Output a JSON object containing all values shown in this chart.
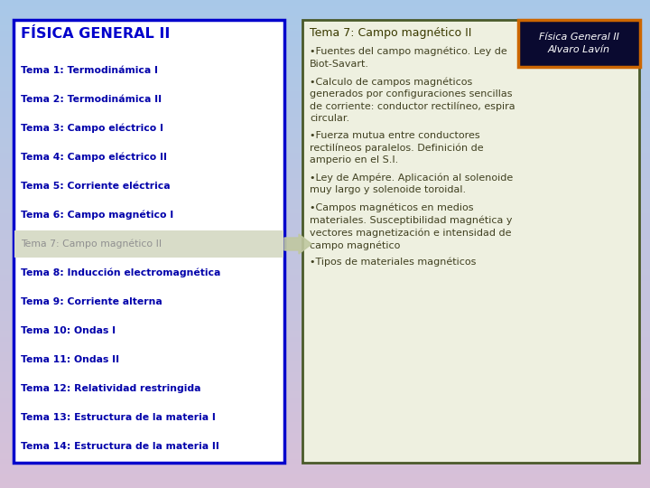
{
  "bg_gradient_top": "#a8c8e8",
  "bg_gradient_bottom": "#d8c0d8",
  "left_box_bg": "#ffffff",
  "left_box_border": "#0000cc",
  "right_box_bg": "#eef0e0",
  "right_box_border": "#4a5a2a",
  "title": "FÍSICA GENERAL II",
  "title_color": "#0000cc",
  "left_items": [
    "Tema 1: Termodinámica I",
    "Tema 2: Termodinámica II",
    "Tema 3: Campo eléctrico I",
    "Tema 4: Campo eléctrico II",
    "Tema 5: Corriente eléctrica",
    "Tema 6: Campo magnético I",
    "Tema 7: Campo magnético II",
    "Tema 8: Inducción electromagnética",
    "Tema 9: Corriente alterna",
    "Tema 10: Ondas I",
    "Tema 11: Ondas II",
    "Tema 12: Relatividad restringida",
    "Tema 13: Estructura de la materia I",
    "Tema 14: Estructura de la materia II"
  ],
  "left_items_color": "#0000aa",
  "highlighted_item_index": 6,
  "highlight_bg": "#d8dcc8",
  "highlight_text_color": "#909090",
  "right_title": "Tema 7: Campo magnético II",
  "right_title_color": "#3a3a00",
  "right_bullets": [
    "•Fuentes del campo magnético. Ley de\nBiot-Savart.",
    "•Calculo de campos magnéticos\ngenerados por configuraciones sencillas\nde corriente: conductor rectilíneo, espira\ncircular.",
    "•Fuerza mutua entre conductores\nrectilíneos paralelos. Definición de\namperio en el S.I.",
    "•Ley de Ampére. Aplicación al solenoide\nmuy largo y solenoide toroidal.",
    "•Campos magnéticos en medios\nmateriales. Susceptibilidad magnética y\nvectores magnetización e intensidad de\ncampo magnético",
    "•Tipos de materiales magnéticos"
  ],
  "right_bullets_color": "#404020",
  "badge_text": "Física General II\nAlvaro Lavín",
  "badge_border": "#cc6600",
  "badge_bg": "#0a0a30"
}
